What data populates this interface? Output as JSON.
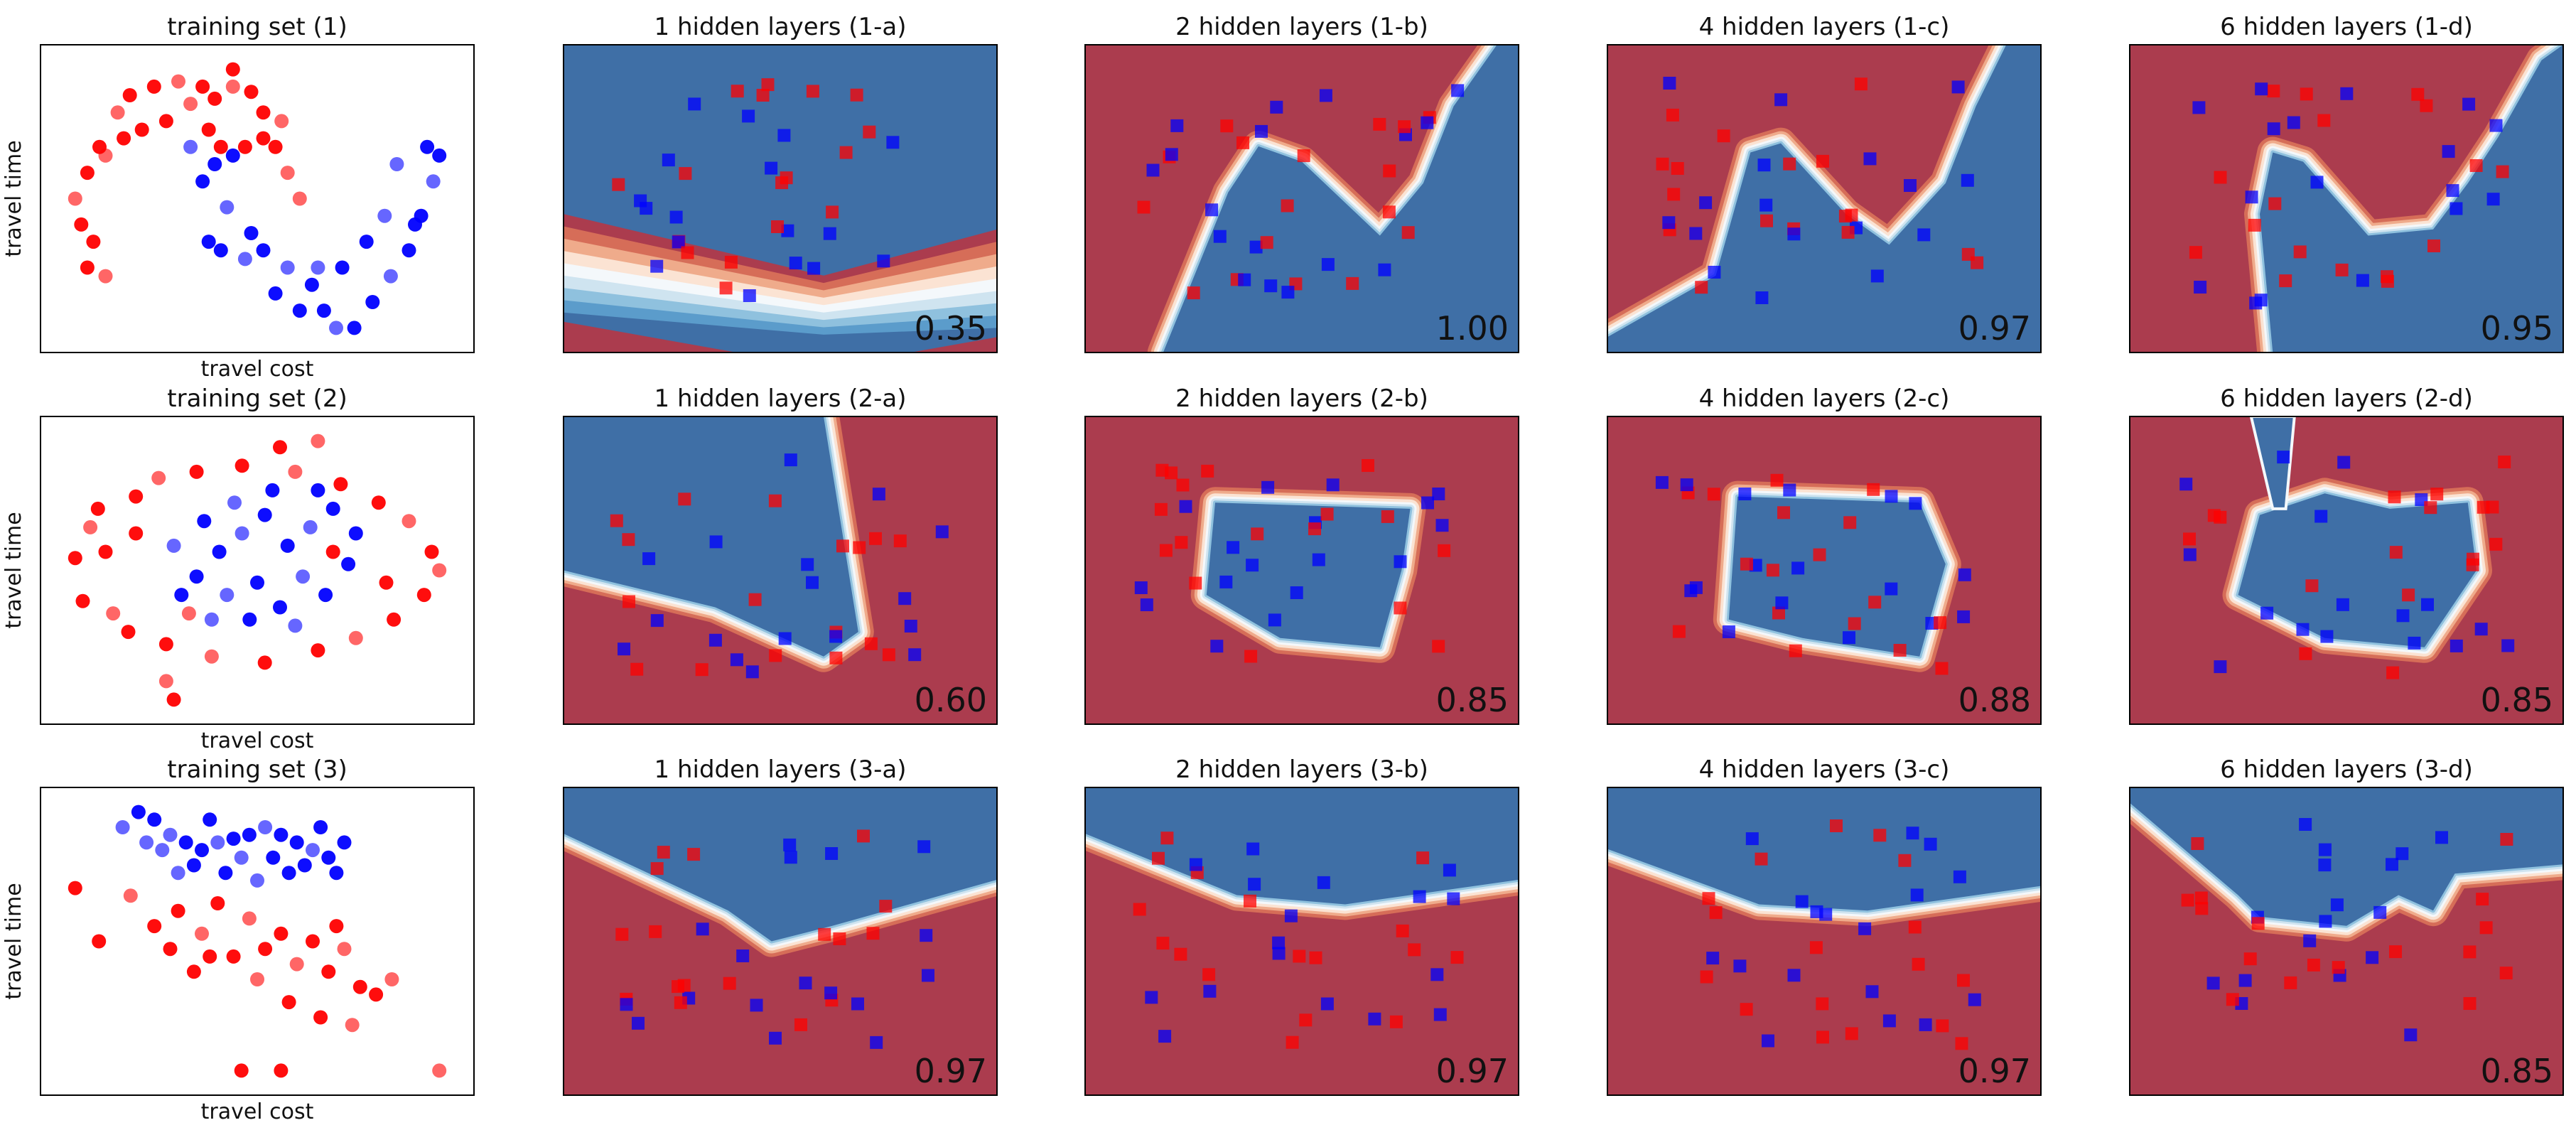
{
  "figure": {
    "rows": 3,
    "cols": 5
  },
  "colors": {
    "class_red": "#ff0000",
    "class_blue": "#0000ff",
    "region_red": "#ab3c4e",
    "region_blue": "#3f6fa6",
    "contour_levels": [
      "#ab3c4e",
      "#d66d58",
      "#efab8b",
      "#fbe3d3",
      "#f4f8fb",
      "#cfe4f0",
      "#8fc1de",
      "#5b9ccb",
      "#3f6fa6"
    ]
  },
  "chart_data": [
    {
      "row": 0,
      "col": 0,
      "type": "scatter",
      "title": "training set (1)",
      "xlabel": "travel cost",
      "ylabel": "travel time",
      "points": [
        [
          -0.6,
          0.8,
          0
        ],
        [
          -0.5,
          0.9,
          0
        ],
        [
          -0.3,
          0.95,
          0
        ],
        [
          -0.1,
          0.98,
          0
        ],
        [
          0.1,
          0.95,
          0
        ],
        [
          0.2,
          0.88,
          0
        ],
        [
          0.35,
          0.95,
          0
        ],
        [
          0.5,
          0.92,
          0
        ],
        [
          0.6,
          0.8,
          0
        ],
        [
          0.75,
          0.75,
          0
        ],
        [
          -0.75,
          0.6,
          0
        ],
        [
          -0.85,
          0.45,
          0
        ],
        [
          -0.95,
          0.3,
          0
        ],
        [
          -0.9,
          0.15,
          0
        ],
        [
          -0.8,
          0.05,
          0
        ],
        [
          -0.7,
          0.55,
          0
        ],
        [
          -0.4,
          0.7,
          0
        ],
        [
          0.45,
          0.6,
          0
        ],
        [
          0.8,
          0.45,
          0
        ],
        [
          0.7,
          0.6,
          0
        ],
        [
          -0.2,
          0.75,
          0
        ],
        [
          0.0,
          0.85,
          0
        ],
        [
          0.15,
          0.7,
          0
        ],
        [
          -0.85,
          -0.1,
          0
        ],
        [
          -0.7,
          -0.15,
          0
        ],
        [
          0.35,
          1.05,
          0
        ],
        [
          0.6,
          0.65,
          0
        ],
        [
          0.9,
          0.3,
          0
        ],
        [
          -0.55,
          0.65,
          0
        ],
        [
          0.25,
          0.6,
          0
        ],
        [
          0.0,
          0.6,
          1
        ],
        [
          0.2,
          0.5,
          1
        ],
        [
          0.1,
          0.4,
          1
        ],
        [
          0.3,
          0.25,
          1
        ],
        [
          0.5,
          0.1,
          1
        ],
        [
          0.6,
          0.0,
          1
        ],
        [
          0.8,
          -0.1,
          1
        ],
        [
          1.0,
          -0.2,
          1
        ],
        [
          1.1,
          -0.35,
          1
        ],
        [
          1.2,
          -0.45,
          1
        ],
        [
          1.35,
          -0.45,
          1
        ],
        [
          1.5,
          -0.3,
          1
        ],
        [
          1.65,
          -0.15,
          1
        ],
        [
          1.8,
          0.0,
          1
        ],
        [
          1.9,
          0.2,
          1
        ],
        [
          2.0,
          0.4,
          1
        ],
        [
          2.05,
          0.55,
          1
        ],
        [
          1.95,
          0.6,
          1
        ],
        [
          1.7,
          0.5,
          1
        ],
        [
          0.35,
          0.55,
          1
        ],
        [
          0.15,
          0.05,
          1
        ],
        [
          0.45,
          -0.05,
          1
        ],
        [
          0.7,
          -0.25,
          1
        ],
        [
          0.9,
          -0.35,
          1
        ],
        [
          1.05,
          -0.1,
          1
        ],
        [
          1.25,
          -0.1,
          1
        ],
        [
          1.45,
          0.05,
          1
        ],
        [
          1.6,
          0.2,
          1
        ],
        [
          1.85,
          0.15,
          1
        ],
        [
          0.25,
          0.0,
          1
        ]
      ],
      "accuracy": ""
    },
    {
      "row": 0,
      "col": 1,
      "type": "contour",
      "title": "1 hidden layers (1-a)",
      "accuracy": "0.35"
    },
    {
      "row": 0,
      "col": 2,
      "type": "contour",
      "title": "2 hidden layers (1-b)",
      "accuracy": "1.00"
    },
    {
      "row": 0,
      "col": 3,
      "type": "contour",
      "title": "4 hidden layers (1-c)",
      "accuracy": "0.97"
    },
    {
      "row": 0,
      "col": 4,
      "type": "contour",
      "title": "6 hidden layers (1-d)",
      "accuracy": "0.95"
    },
    {
      "row": 1,
      "col": 0,
      "type": "scatter",
      "title": "training set (2)",
      "xlabel": "travel cost",
      "ylabel": "travel time",
      "points": [
        [
          -2.2,
          0.6,
          0
        ],
        [
          -2.3,
          -0.6,
          0
        ],
        [
          -2.1,
          0.9,
          0
        ],
        [
          -1.9,
          -0.8,
          0
        ],
        [
          -1.6,
          1.1,
          0
        ],
        [
          -1.7,
          -1.1,
          0
        ],
        [
          -1.3,
          1.4,
          0
        ],
        [
          -1.2,
          -1.3,
          0
        ],
        [
          -0.8,
          1.5,
          0
        ],
        [
          -0.6,
          -1.5,
          0
        ],
        [
          -0.2,
          1.6,
          0
        ],
        [
          0.1,
          -1.6,
          0
        ],
        [
          0.5,
          1.5,
          0
        ],
        [
          0.8,
          -1.4,
          0
        ],
        [
          1.1,
          1.3,
          0
        ],
        [
          1.3,
          -1.2,
          0
        ],
        [
          1.6,
          1.0,
          0
        ],
        [
          1.8,
          -0.9,
          0
        ],
        [
          2.0,
          0.7,
          0
        ],
        [
          2.2,
          -0.5,
          0
        ],
        [
          2.3,
          0.2,
          0
        ],
        [
          2.4,
          -0.1,
          0
        ],
        [
          -2.4,
          0.1,
          0
        ],
        [
          -2.0,
          0.2,
          0
        ],
        [
          -1.2,
          -1.9,
          0
        ],
        [
          -1.1,
          -2.2,
          0
        ],
        [
          0.3,
          1.9,
          0
        ],
        [
          0.8,
          2.0,
          0
        ],
        [
          -1.6,
          0.5,
          0
        ],
        [
          1.7,
          -0.3,
          0
        ],
        [
          -0.9,
          -0.8,
          0
        ],
        [
          1.0,
          0.2,
          0
        ],
        [
          -0.5,
          0.2,
          1
        ],
        [
          -0.2,
          0.5,
          1
        ],
        [
          0.1,
          0.8,
          1
        ],
        [
          0.4,
          0.3,
          1
        ],
        [
          0.7,
          0.6,
          1
        ],
        [
          1.0,
          0.9,
          1
        ],
        [
          -0.8,
          -0.2,
          1
        ],
        [
          -0.4,
          -0.5,
          1
        ],
        [
          0.0,
          -0.3,
          1
        ],
        [
          0.3,
          -0.7,
          1
        ],
        [
          0.6,
          -0.2,
          1
        ],
        [
          0.9,
          -0.5,
          1
        ],
        [
          1.2,
          0.0,
          1
        ],
        [
          -1.1,
          0.3,
          1
        ],
        [
          -0.7,
          0.7,
          1
        ],
        [
          0.2,
          1.2,
          1
        ],
        [
          -0.3,
          1.0,
          1
        ],
        [
          1.3,
          0.5,
          1
        ],
        [
          -0.1,
          -0.9,
          1
        ],
        [
          0.5,
          -1.0,
          1
        ],
        [
          -1.0,
          -0.5,
          1
        ],
        [
          0.8,
          1.2,
          1
        ],
        [
          -0.6,
          -0.9,
          1
        ]
      ],
      "accuracy": ""
    },
    {
      "row": 1,
      "col": 1,
      "type": "contour",
      "title": "1 hidden layers (2-a)",
      "accuracy": "0.60"
    },
    {
      "row": 1,
      "col": 2,
      "type": "contour",
      "title": "2 hidden layers (2-b)",
      "accuracy": "0.85"
    },
    {
      "row": 1,
      "col": 3,
      "type": "contour",
      "title": "4 hidden layers (2-c)",
      "accuracy": "0.88"
    },
    {
      "row": 1,
      "col": 4,
      "type": "contour",
      "title": "6 hidden layers (2-d)",
      "accuracy": "0.85"
    },
    {
      "row": 2,
      "col": 0,
      "type": "scatter",
      "title": "training set (3)",
      "xlabel": "travel cost",
      "ylabel": "travel time",
      "points": [
        [
          -2.0,
          1.2,
          1
        ],
        [
          -1.8,
          1.4,
          1
        ],
        [
          -1.6,
          1.3,
          1
        ],
        [
          -1.4,
          1.1,
          1
        ],
        [
          -1.2,
          1.0,
          1
        ],
        [
          -1.0,
          0.9,
          1
        ],
        [
          -0.8,
          1.0,
          1
        ],
        [
          -0.6,
          1.05,
          1
        ],
        [
          -0.4,
          1.1,
          1
        ],
        [
          -0.2,
          1.2,
          1
        ],
        [
          0.0,
          1.1,
          1
        ],
        [
          0.2,
          1.0,
          1
        ],
        [
          0.4,
          0.9,
          1
        ],
        [
          0.6,
          0.8,
          1
        ],
        [
          0.8,
          1.0,
          1
        ],
        [
          -1.5,
          0.9,
          1
        ],
        [
          -1.1,
          0.7,
          1
        ],
        [
          -0.7,
          0.6,
          1
        ],
        [
          -0.3,
          0.5,
          1
        ],
        [
          0.1,
          0.6,
          1
        ],
        [
          0.3,
          0.7,
          1
        ],
        [
          -0.5,
          0.8,
          1
        ],
        [
          -0.9,
          1.3,
          1
        ],
        [
          0.5,
          1.2,
          1
        ],
        [
          -1.7,
          1.0,
          1
        ],
        [
          -0.1,
          0.8,
          1
        ],
        [
          0.7,
          0.6,
          1
        ],
        [
          -1.3,
          0.6,
          1
        ],
        [
          -2.6,
          0.4,
          0
        ],
        [
          -2.3,
          -0.3,
          0
        ],
        [
          -1.9,
          0.3,
          0
        ],
        [
          -1.6,
          -0.1,
          0
        ],
        [
          -1.3,
          0.1,
          0
        ],
        [
          -1.0,
          -0.2,
          0
        ],
        [
          -0.8,
          0.2,
          0
        ],
        [
          -0.6,
          -0.5,
          0
        ],
        [
          -0.4,
          0.0,
          0
        ],
        [
          -0.2,
          -0.4,
          0
        ],
        [
          0.0,
          -0.2,
          0
        ],
        [
          0.2,
          -0.6,
          0
        ],
        [
          0.4,
          -0.3,
          0
        ],
        [
          0.6,
          -0.7,
          0
        ],
        [
          0.8,
          -0.4,
          0
        ],
        [
          1.0,
          -0.9,
          0
        ],
        [
          1.2,
          -1.0,
          0
        ],
        [
          1.4,
          -0.8,
          0
        ],
        [
          -1.1,
          -0.7,
          0
        ],
        [
          -0.9,
          -0.5,
          0
        ],
        [
          -0.3,
          -0.8,
          0
        ],
        [
          0.1,
          -1.1,
          0
        ],
        [
          0.5,
          -1.3,
          0
        ],
        [
          0.9,
          -1.4,
          0
        ],
        [
          -0.5,
          -2.0,
          0
        ],
        [
          0.0,
          -2.0,
          0
        ],
        [
          2.0,
          -2.0,
          0
        ],
        [
          -1.4,
          -0.4,
          0
        ],
        [
          0.7,
          -0.1,
          0
        ]
      ],
      "accuracy": ""
    },
    {
      "row": 2,
      "col": 1,
      "type": "contour",
      "title": "1 hidden layers (3-a)",
      "accuracy": "0.97"
    },
    {
      "row": 2,
      "col": 2,
      "type": "contour",
      "title": "2 hidden layers (3-b)",
      "accuracy": "0.97"
    },
    {
      "row": 2,
      "col": 3,
      "type": "contour",
      "title": "4 hidden layers (3-c)",
      "accuracy": "0.97"
    },
    {
      "row": 2,
      "col": 4,
      "type": "contour",
      "title": "6 hidden layers (3-d)",
      "accuracy": "0.85"
    }
  ]
}
